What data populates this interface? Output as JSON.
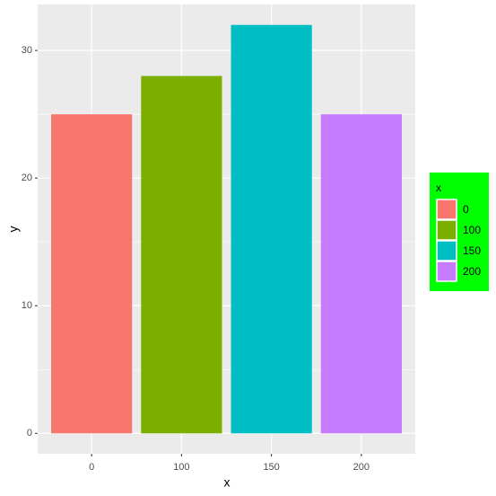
{
  "chart_data": {
    "type": "bar",
    "categories": [
      "0",
      "100",
      "150",
      "200"
    ],
    "values": [
      25,
      28,
      32,
      25
    ],
    "colors": [
      "#F8766D",
      "#7CAE00",
      "#00BFC4",
      "#C77CFF"
    ],
    "x_label": "x",
    "y_label": "y",
    "ylim": [
      -1.6,
      33.6
    ],
    "yticks": [
      0,
      10,
      20,
      30
    ],
    "grid": true,
    "legend_title": "x",
    "legend_position": "right",
    "legend_background": "#00FF00"
  }
}
